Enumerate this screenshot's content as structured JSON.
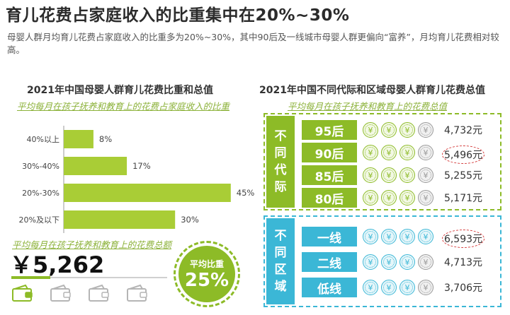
{
  "title": "育儿花费占家庭收入的比重集中在20%~30%",
  "description": "母婴人群月均育儿花费占家庭收入的比重多为20%~30%，其中90后及一线城市母婴人群更偏向“富养”，月均育儿花费相对较高。",
  "left_panel": {
    "title": "2021年中国母婴人群育儿花费比重和总值",
    "subtitle": "平均每月在孩子抚养和教育上的花费占家庭收入的比重",
    "total_subtitle": "平均每月在孩子抚养和教育上的花费总额",
    "total_amount": "￥5,262",
    "ratio_label": "平均比重",
    "ratio_value": "25%",
    "progress": 0.25,
    "wallet_icons": [
      "wallet-icon",
      "wallet-icon",
      "wallet-icon",
      "wallet-icon"
    ]
  },
  "chart_data": {
    "type": "bar",
    "orientation": "horizontal",
    "categories": [
      "40%以上",
      "30%-40%",
      "20%-30%",
      "20%及以下"
    ],
    "values": [
      8,
      17,
      45,
      30
    ],
    "value_labels": [
      "8%",
      "17%",
      "45%",
      "30%"
    ],
    "xlim": [
      0,
      50
    ],
    "grid": false,
    "color": "#a9cd36"
  },
  "right_panel": {
    "title": "2021年中国不同代际和区域母婴人群育儿花费总值",
    "subtitle": "平均每月在孩子抚养和教育上的花费总值",
    "groups": [
      {
        "label": "不同代际",
        "label_chars": [
          "不",
          "同",
          "代",
          "际"
        ],
        "color": "#8dbb27",
        "rows": [
          {
            "label": "95后",
            "value": "4,732元",
            "coins_filled": 3,
            "highlight": false
          },
          {
            "label": "90后",
            "value": "5,496元",
            "coins_filled": 3,
            "highlight": true
          },
          {
            "label": "85后",
            "value": "5,255元",
            "coins_filled": 3,
            "highlight": false
          },
          {
            "label": "80后",
            "value": "5,171元",
            "coins_filled": 3,
            "highlight": false
          }
        ]
      },
      {
        "label": "不同区域",
        "label_chars": [
          "不",
          "同",
          "区",
          "域"
        ],
        "color": "#3bb7d6",
        "rows": [
          {
            "label": "一线",
            "value": "6,593元",
            "coins_filled": 4,
            "highlight": true
          },
          {
            "label": "二线",
            "value": "4,713元",
            "coins_filled": 3,
            "highlight": false
          },
          {
            "label": "低线",
            "value": "3,706元",
            "coins_filled": 3,
            "highlight": false
          }
        ]
      }
    ],
    "coin_symbol": "¥",
    "coin_icon": "yuan-coin-icon"
  }
}
